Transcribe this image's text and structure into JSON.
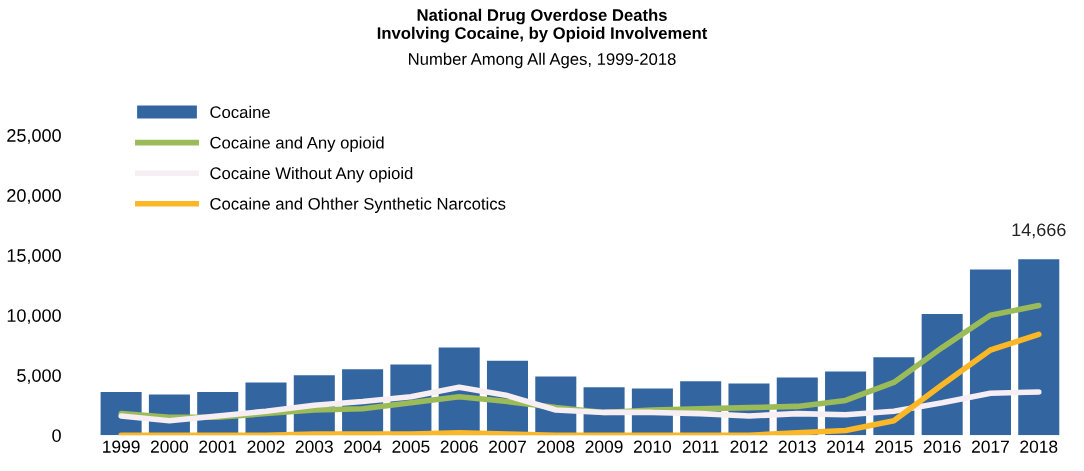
{
  "chart_data": {
    "type": "bar",
    "title": "National Drug Overdose Deaths\nInvolving Cocaine, by Opioid Involvement",
    "subtitle": "Number Among All Ages, 1999-2018",
    "categories": [
      "1999",
      "2000",
      "2001",
      "2002",
      "2003",
      "2004",
      "2005",
      "2006",
      "2007",
      "2008",
      "2009",
      "2010",
      "2011",
      "2012",
      "2013",
      "2014",
      "2015",
      "2016",
      "2017",
      "2018"
    ],
    "series": [
      {
        "name": "Cocaine",
        "color": "#3366a0",
        "values": [
          3600,
          3400,
          3600,
          4400,
          5000,
          5500,
          5900,
          7300,
          6200,
          4900,
          4000,
          3900,
          4500,
          4300,
          4800,
          5300,
          6500,
          10100,
          13800,
          14666
        ],
        "value_labels": [
          null,
          null,
          null,
          null,
          null,
          null,
          null,
          null,
          null,
          null,
          null,
          null,
          null,
          null,
          null,
          null,
          null,
          null,
          null,
          "14,666"
        ]
      },
      {
        "name": "Cocaine and Any opioid",
        "type": "line",
        "color": "#9bbb59",
        "values": [
          1800,
          1500,
          1500,
          1800,
          2100,
          2200,
          2700,
          3200,
          2800,
          2300,
          1900,
          2100,
          2200,
          2300,
          2400,
          2900,
          4400,
          7300,
          10000,
          10800
        ]
      },
      {
        "name": "Cocaine Without Any opioid",
        "type": "line",
        "color": "#f7eef4",
        "values": [
          1600,
          1200,
          1600,
          2000,
          2500,
          2800,
          3200,
          4000,
          3300,
          2100,
          1900,
          1900,
          1800,
          1600,
          1800,
          1700,
          2000,
          2700,
          3500,
          3600
        ]
      },
      {
        "name": "Cocaine and Ohther Synthetic Narcotics",
        "type": "line",
        "color": "#fbb726",
        "values": [
          0,
          0,
          0,
          0,
          100,
          100,
          100,
          200,
          100,
          0,
          0,
          0,
          0,
          0,
          200,
          400,
          1200,
          4200,
          7100,
          8400
        ]
      }
    ],
    "ylim": [
      0,
      25000
    ],
    "yticks": [
      {
        "value": 0,
        "label": "0"
      },
      {
        "value": 5000,
        "label": "5,000"
      },
      {
        "value": 10000,
        "label": "10,000"
      },
      {
        "value": 15000,
        "label": "15,000"
      },
      {
        "value": 20000,
        "label": "20,000"
      },
      {
        "value": 25000,
        "label": "25,000"
      }
    ],
    "grid": false,
    "legend": "top left"
  }
}
